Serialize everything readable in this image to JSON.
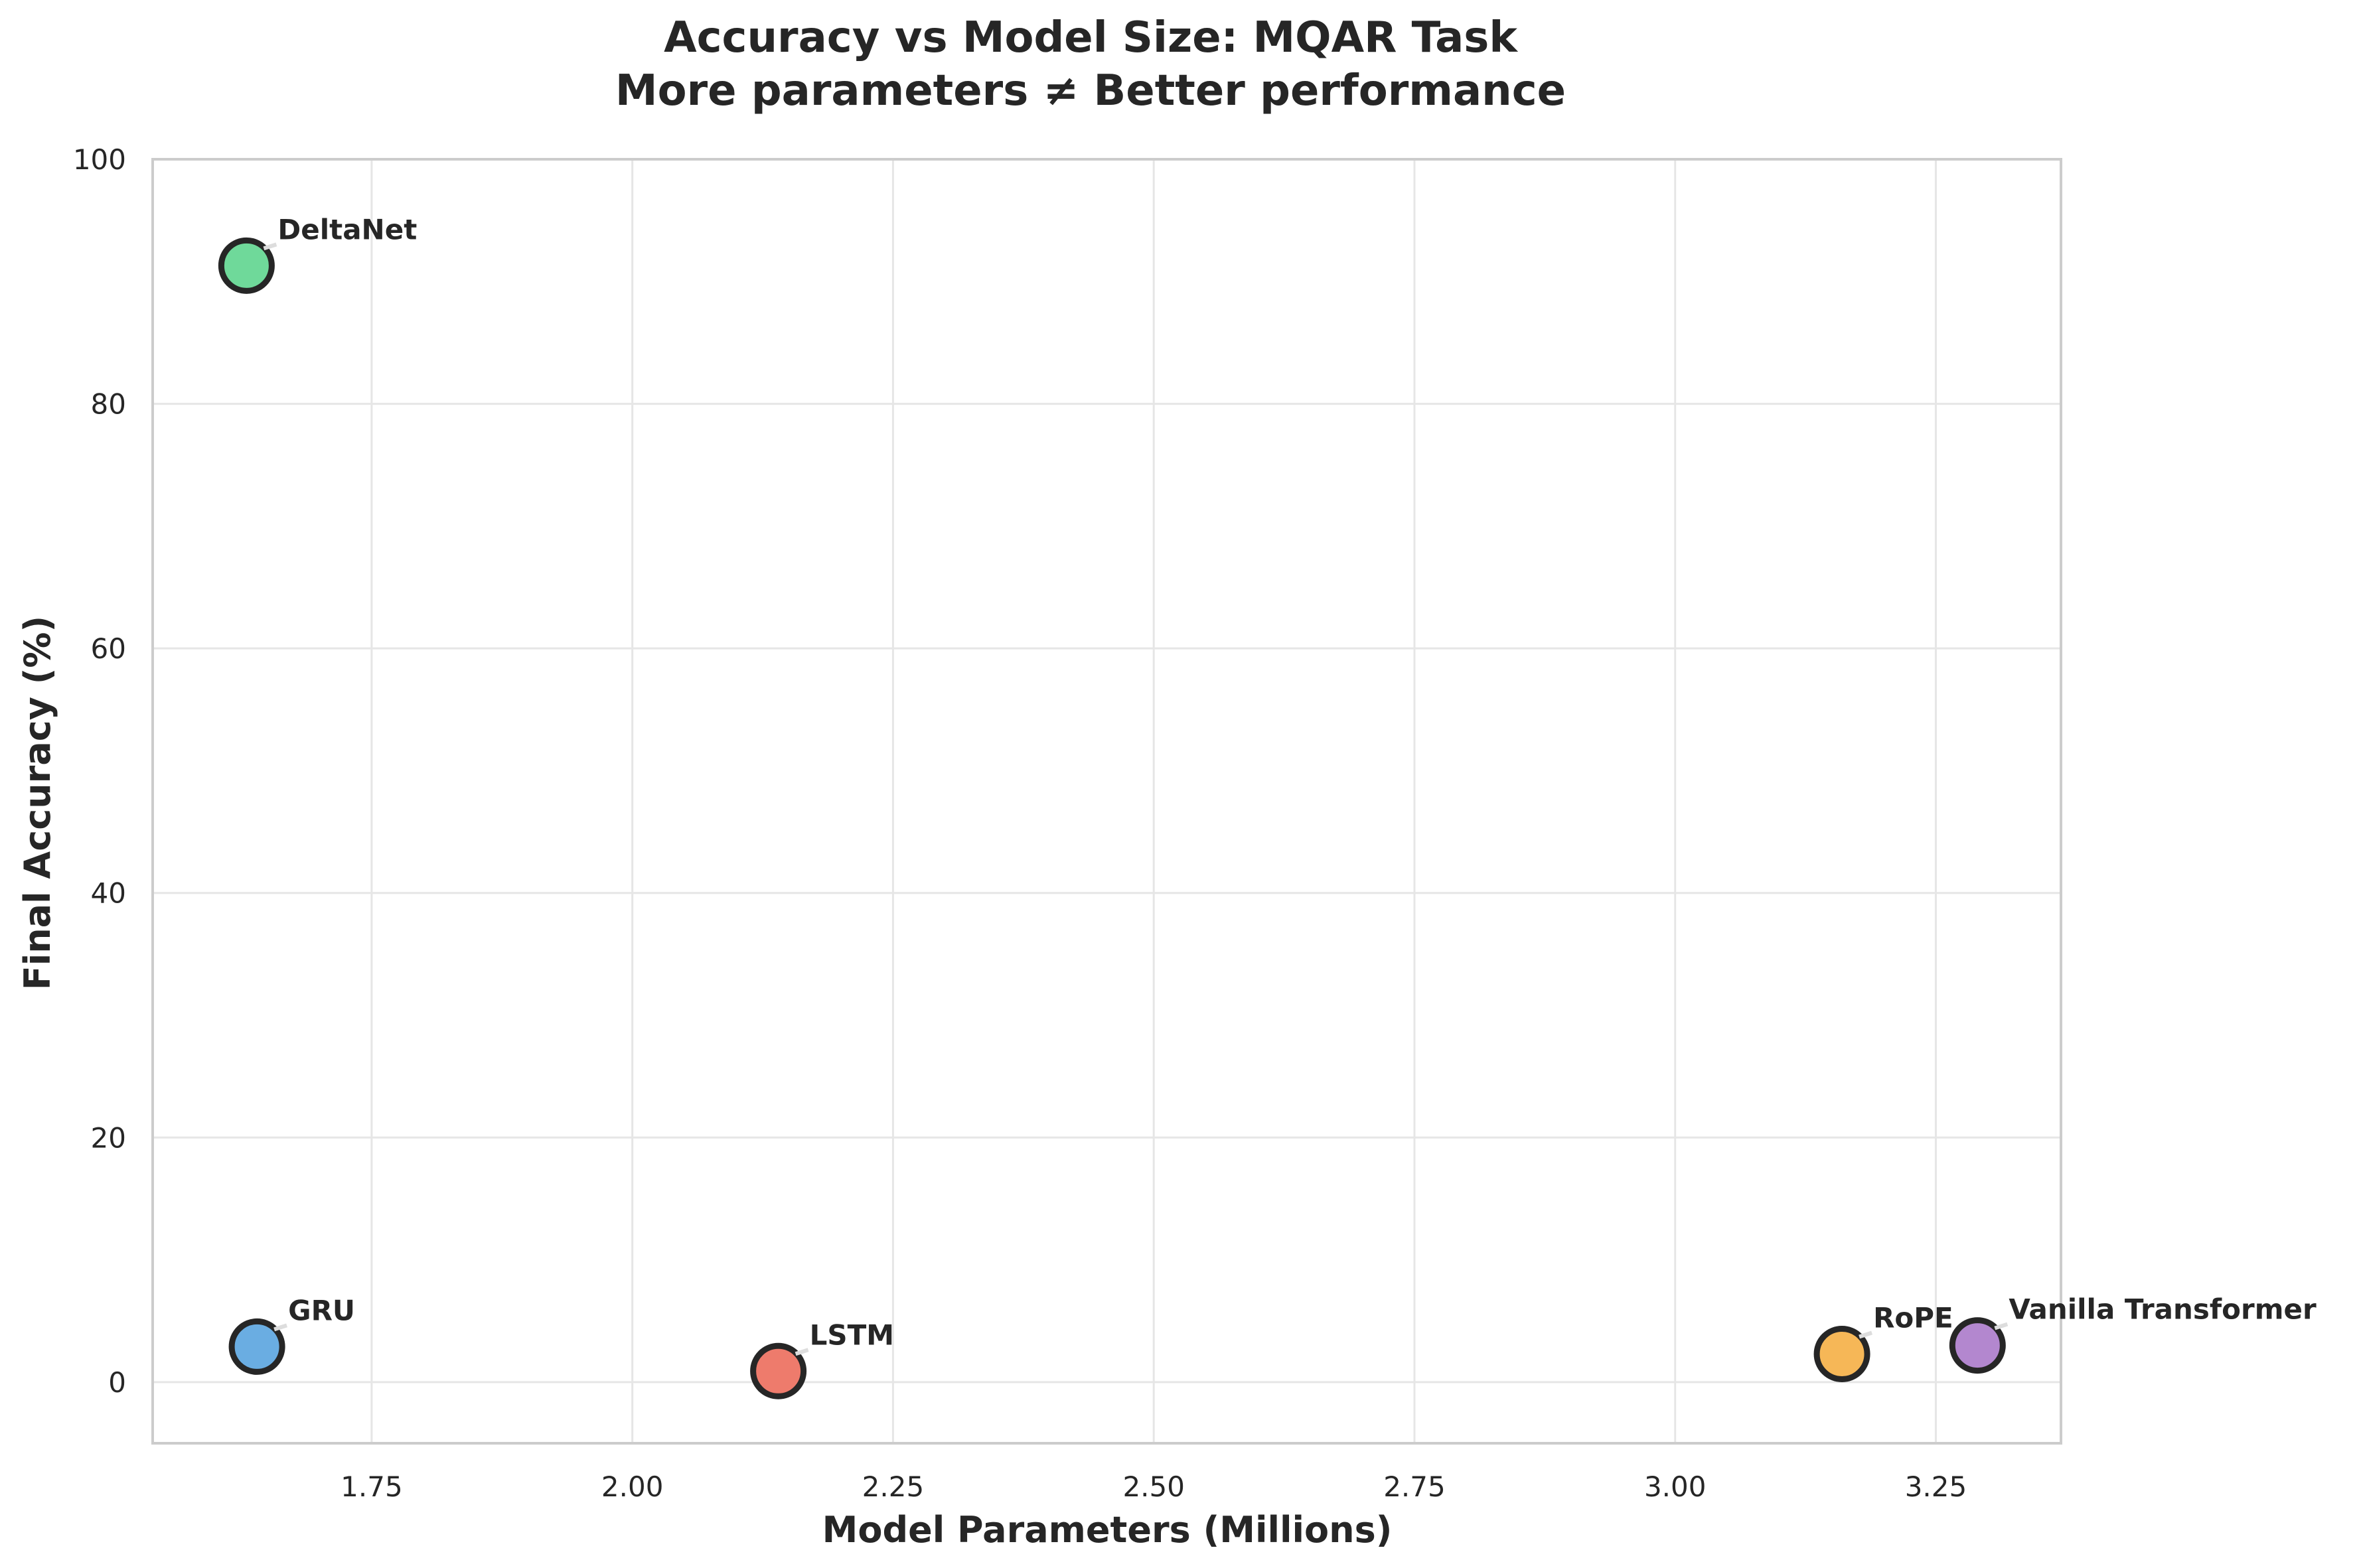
{
  "chart_data": {
    "type": "scatter",
    "title": "Accuracy vs Model Size: MQAR Task",
    "subtitle": "More parameters ≠ Better performance",
    "xlabel": "Model Parameters (Millions)",
    "ylabel": "Final Accuracy (%)",
    "xlim": [
      1.54,
      3.37
    ],
    "ylim": [
      -5,
      100
    ],
    "xticks": [
      "1.75",
      "2.00",
      "2.25",
      "2.50",
      "2.75",
      "3.00",
      "3.25"
    ],
    "xtick_values": [
      1.75,
      2.0,
      2.25,
      2.5,
      2.75,
      3.0,
      3.25
    ],
    "yticks": [
      "0",
      "20",
      "40",
      "60",
      "80",
      "100"
    ],
    "ytick_values": [
      0,
      20,
      40,
      60,
      80,
      100
    ],
    "grid": true,
    "points": [
      {
        "label": "DeltaNet",
        "x": 1.63,
        "y": 91.3,
        "color": "#6fd99a"
      },
      {
        "label": "GRU",
        "x": 1.64,
        "y": 2.9,
        "color": "#6aade2"
      },
      {
        "label": "LSTM",
        "x": 2.14,
        "y": 0.9,
        "color": "#ee7b6c"
      },
      {
        "label": "RoPE",
        "x": 3.16,
        "y": 2.3,
        "color": "#f6b757"
      },
      {
        "label": "Vanilla Transformer",
        "x": 3.29,
        "y": 3.0,
        "color": "#b387cf"
      }
    ]
  }
}
